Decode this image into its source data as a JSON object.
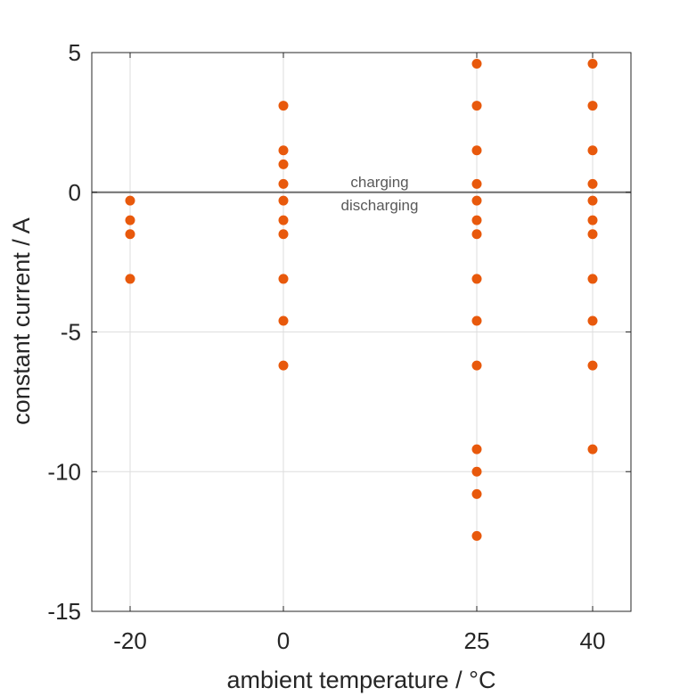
{
  "chart_data": {
    "type": "scatter",
    "xlabel": "ambient temperature / °C",
    "ylabel": "constant current / A",
    "xticks": [
      -20,
      0,
      25,
      40
    ],
    "xtick_labels": [
      "-20",
      "0",
      "25",
      "40"
    ],
    "yticks": [
      5,
      0,
      -5,
      -10,
      -15
    ],
    "ytick_labels": [
      "5",
      "0",
      "-5",
      "-10",
      "-15"
    ],
    "ylim": [
      -15,
      5
    ],
    "grid": true,
    "marker_color": "#e8590c",
    "zero_line_color": "#6e6e6e",
    "annotations": {
      "above": "charging",
      "below": "discharging"
    },
    "series": [
      {
        "points": [
          {
            "x": -20,
            "y": -0.3
          },
          {
            "x": -20,
            "y": -1.0
          },
          {
            "x": -20,
            "y": -1.5
          },
          {
            "x": -20,
            "y": -3.1
          },
          {
            "x": 0,
            "y": 3.1
          },
          {
            "x": 0,
            "y": 1.5
          },
          {
            "x": 0,
            "y": 1.0
          },
          {
            "x": 0,
            "y": 0.3
          },
          {
            "x": 0,
            "y": -0.3
          },
          {
            "x": 0,
            "y": -1.0
          },
          {
            "x": 0,
            "y": -1.5
          },
          {
            "x": 0,
            "y": -3.1
          },
          {
            "x": 0,
            "y": -4.6
          },
          {
            "x": 0,
            "y": -6.2
          },
          {
            "x": 25,
            "y": 4.6
          },
          {
            "x": 25,
            "y": 3.1
          },
          {
            "x": 25,
            "y": 1.5
          },
          {
            "x": 25,
            "y": 0.3
          },
          {
            "x": 25,
            "y": -0.3
          },
          {
            "x": 25,
            "y": -1.0
          },
          {
            "x": 25,
            "y": -1.5
          },
          {
            "x": 25,
            "y": -3.1
          },
          {
            "x": 25,
            "y": -4.6
          },
          {
            "x": 25,
            "y": -6.2
          },
          {
            "x": 25,
            "y": -9.2
          },
          {
            "x": 25,
            "y": -10.0
          },
          {
            "x": 25,
            "y": -10.8
          },
          {
            "x": 25,
            "y": -12.3
          },
          {
            "x": 40,
            "y": 4.6
          },
          {
            "x": 40,
            "y": 3.1
          },
          {
            "x": 40,
            "y": 1.5
          },
          {
            "x": 40,
            "y": 0.3
          },
          {
            "x": 40,
            "y": -0.3
          },
          {
            "x": 40,
            "y": -1.0
          },
          {
            "x": 40,
            "y": -1.5
          },
          {
            "x": 40,
            "y": -3.1
          },
          {
            "x": 40,
            "y": -4.6
          },
          {
            "x": 40,
            "y": -6.2
          },
          {
            "x": 40,
            "y": -9.2
          }
        ]
      }
    ]
  }
}
